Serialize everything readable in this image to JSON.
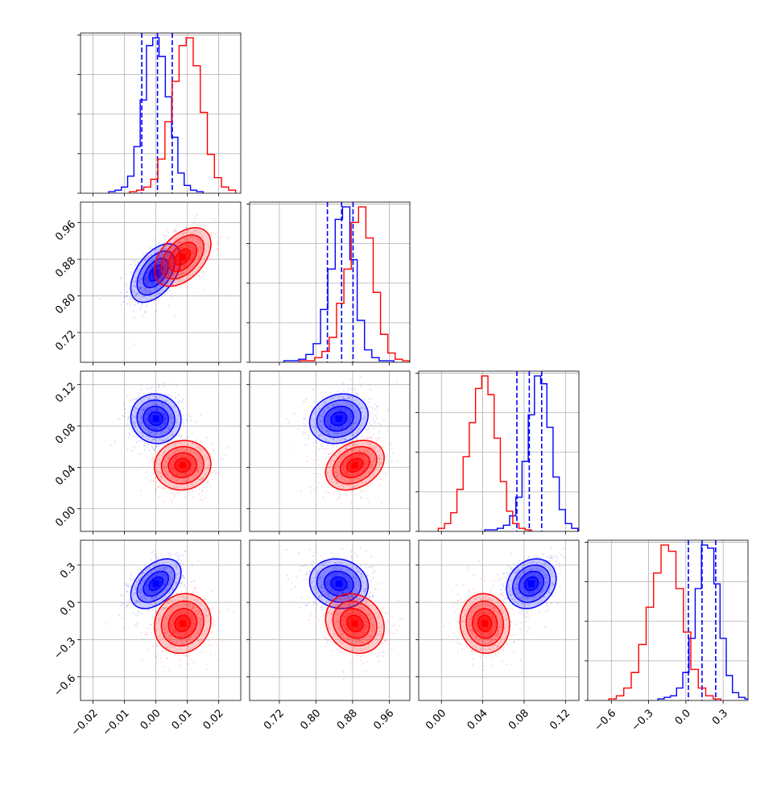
{
  "chart_data": {
    "type": "corner",
    "title": "",
    "parameters": [
      {
        "id": "p0",
        "label": "",
        "range": [
          -0.024,
          0.027
        ],
        "ticks": [
          -0.02,
          -0.01,
          0.0,
          0.01,
          0.02
        ],
        "tick_labels": [
          "−0.02",
          "−0.01",
          "0.00",
          "0.01",
          "0.02"
        ]
      },
      {
        "id": "p1",
        "label": "",
        "range": [
          0.655,
          1.005
        ],
        "ticks": [
          0.72,
          0.8,
          0.88,
          0.96
        ],
        "tick_labels": [
          "0.72",
          "0.80",
          "0.88",
          "0.96"
        ]
      },
      {
        "id": "p2",
        "label": "",
        "range": [
          -0.022,
          0.133
        ],
        "ticks": [
          0.0,
          0.04,
          0.08,
          0.12
        ],
        "tick_labels": [
          "0.00",
          "0.04",
          "0.08",
          "0.12"
        ]
      },
      {
        "id": "p3",
        "label": "",
        "range": [
          -0.79,
          0.5
        ],
        "ticks": [
          -0.6,
          -0.3,
          0.0,
          0.3
        ],
        "tick_labels": [
          "−0.6",
          "−0.3",
          "0.0",
          "0.3"
        ]
      }
    ],
    "grid": true,
    "colors": {
      "blue": "#0000ff",
      "red": "#ff0000"
    },
    "series": [
      {
        "color": "#0000ff",
        "means": [
          0.0,
          0.85,
          0.087,
          0.15
        ],
        "stds": [
          0.004,
          0.032,
          0.012,
          0.1
        ],
        "quantile_lines": [
          [
            -0.0045,
            0.0005,
            0.0052
          ],
          [
            0.825,
            0.856,
            0.881
          ],
          [
            0.073,
            0.085,
            0.097
          ],
          [
            0.02,
            0.13,
            0.24
          ]
        ],
        "correlations": {
          "1-0": 0.5,
          "2-0": -0.05,
          "2-1": 0.15,
          "3-0": 0.45,
          "3-1": -0.1,
          "3-2": 0.2
        },
        "histograms": [
          [
            1,
            2,
            4,
            11,
            30,
            60,
            95,
            100,
            88,
            62,
            36,
            13,
            5,
            2,
            1
          ],
          [
            1,
            1,
            2,
            5,
            12,
            34,
            60,
            92,
            100,
            66,
            27,
            8,
            3,
            1,
            1
          ],
          [
            1,
            1,
            2,
            4,
            10,
            22,
            45,
            75,
            100,
            95,
            67,
            35,
            14,
            5,
            2
          ],
          [
            1,
            2,
            3,
            8,
            18,
            40,
            72,
            100,
            98,
            75,
            40,
            16,
            5,
            2,
            1
          ]
        ]
      },
      {
        "color": "#ff0000",
        "means": [
          0.0085,
          0.885,
          0.042,
          -0.17
        ],
        "stds": [
          0.0045,
          0.032,
          0.012,
          0.12
        ],
        "correlations": {
          "1-0": 0.45,
          "2-0": 0.05,
          "2-1": 0.3,
          "3-0": 0.1,
          "3-1": -0.15,
          "3-2": -0.05
        },
        "histograms": [
          [
            1,
            2,
            4,
            9,
            22,
            46,
            72,
            95,
            100,
            82,
            52,
            25,
            10,
            4,
            2
          ],
          [
            1,
            1,
            3,
            7,
            16,
            38,
            60,
            90,
            100,
            80,
            45,
            18,
            6,
            2,
            1
          ],
          [
            2,
            5,
            12,
            27,
            48,
            70,
            92,
            100,
            88,
            60,
            32,
            13,
            5,
            2,
            1
          ],
          [
            1,
            3,
            8,
            18,
            36,
            60,
            82,
            100,
            96,
            72,
            44,
            20,
            8,
            3,
            1
          ]
        ]
      }
    ]
  }
}
